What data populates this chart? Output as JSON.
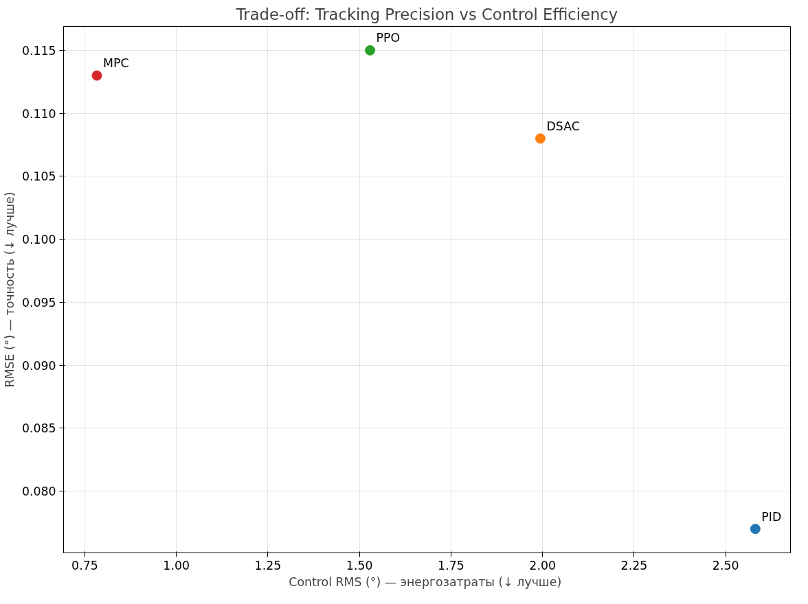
{
  "chart_data": {
    "type": "scatter",
    "title": "Trade-off: Tracking Precision vs Control Efficiency",
    "xlabel": "Control RMS (°)  — энергозатраты (↓ лучше)",
    "ylabel": "RMSE (°) — точность (↓ лучше)",
    "series": [
      {
        "name": "PID",
        "color": "#1f77b4",
        "x": [
          2.581
        ],
        "values": [
          0.077
        ]
      },
      {
        "name": "DSAC",
        "color": "#ff7f0e",
        "x": [
          1.994
        ],
        "values": [
          0.108
        ]
      },
      {
        "name": "PPO",
        "color": "#2ca02c",
        "x": [
          1.529
        ],
        "values": [
          0.115
        ]
      },
      {
        "name": "MPC",
        "color": "#d62728",
        "x": [
          0.783
        ],
        "values": [
          0.113
        ]
      }
    ],
    "xlim": [
      0.692,
      2.677
    ],
    "ylim": [
      0.0751,
      0.1169
    ],
    "xticks": [
      {
        "value": 0.75,
        "label": "0.75"
      },
      {
        "value": 1.0,
        "label": "1.00"
      },
      {
        "value": 1.25,
        "label": "1.25"
      },
      {
        "value": 1.5,
        "label": "1.50"
      },
      {
        "value": 1.75,
        "label": "1.75"
      },
      {
        "value": 2.0,
        "label": "2.00"
      },
      {
        "value": 2.25,
        "label": "2.25"
      },
      {
        "value": 2.5,
        "label": "2.50"
      }
    ],
    "yticks": [
      {
        "value": 0.08,
        "label": "0.080"
      },
      {
        "value": 0.085,
        "label": "0.085"
      },
      {
        "value": 0.09,
        "label": "0.090"
      },
      {
        "value": 0.095,
        "label": "0.095"
      },
      {
        "value": 0.1,
        "label": "0.100"
      },
      {
        "value": 0.105,
        "label": "0.105"
      },
      {
        "value": 0.11,
        "label": "0.110"
      },
      {
        "value": 0.115,
        "label": "0.115"
      }
    ],
    "grid": true,
    "marker": "circle"
  }
}
